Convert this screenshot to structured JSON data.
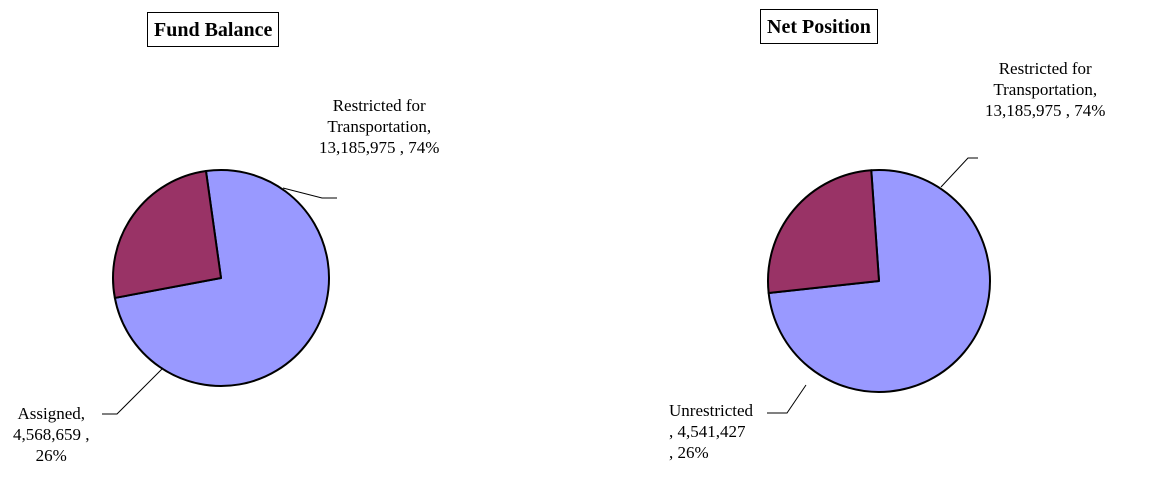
{
  "chart_data": [
    {
      "type": "pie",
      "title": "Fund Balance",
      "slices": [
        {
          "name": "Restricted for Transportation",
          "value": 13185975,
          "percent": 74,
          "color": "#9999ff",
          "label_lines": [
            "Restricted for",
            "Transportation,",
            "13,185,975 , 74%"
          ]
        },
        {
          "name": "Assigned",
          "value": 4568659,
          "percent": 26,
          "color": "#993366",
          "label_lines": [
            "Assigned,",
            "4,568,659 ,",
            "26%"
          ]
        }
      ]
    },
    {
      "type": "pie",
      "title": "Net Position",
      "slices": [
        {
          "name": "Restricted for Transportation",
          "value": 13185975,
          "percent": 74,
          "color": "#9999ff",
          "label_lines": [
            "Restricted for",
            "Transportation,",
            "13,185,975 , 74%"
          ]
        },
        {
          "name": "Unrestricted",
          "value": 4541427,
          "percent": 26,
          "color": "#993366",
          "label_lines": [
            "Unrestricted",
            ",  4,541,427",
            ", 26%"
          ]
        }
      ]
    }
  ]
}
